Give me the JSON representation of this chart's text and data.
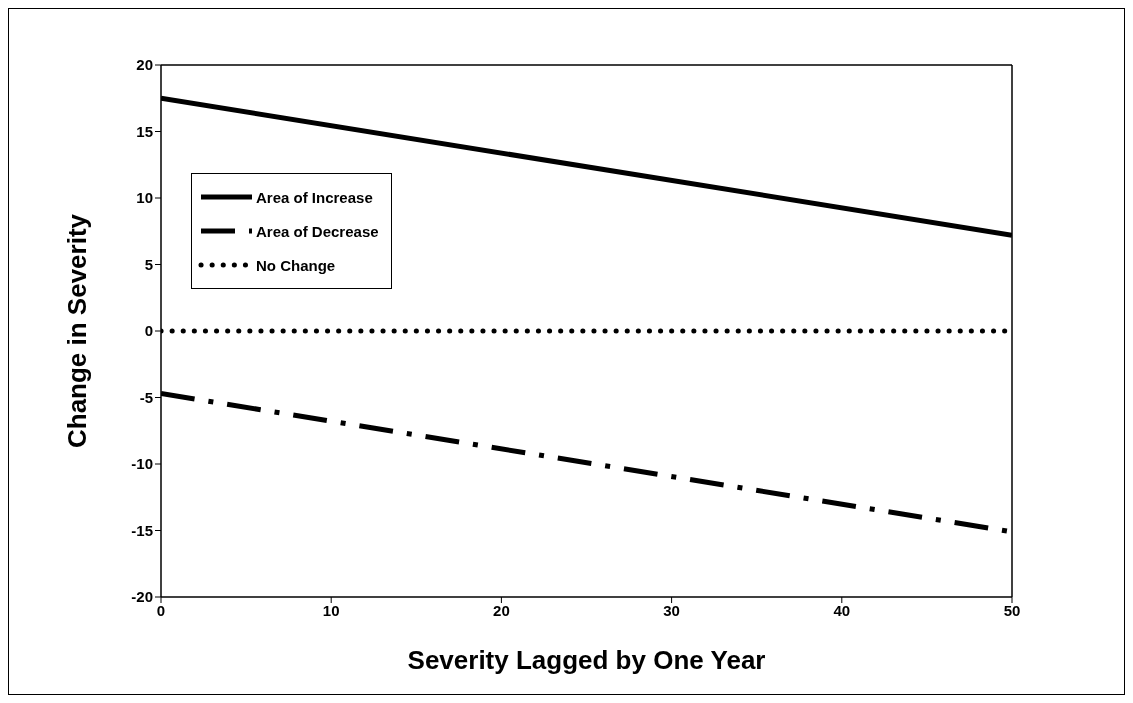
{
  "chart_data": {
    "type": "line",
    "xlabel": "Severity Lagged by One Year",
    "ylabel": "Change in Severity",
    "xlim": [
      0,
      50
    ],
    "xticks": [
      0,
      10,
      20,
      30,
      40,
      50
    ],
    "ylim": [
      -20,
      20
    ],
    "yticks": [
      -20,
      -15,
      -10,
      -5,
      0,
      5,
      10,
      15,
      20
    ],
    "grid": false,
    "legend": "top left",
    "marker": "none",
    "x": [
      0,
      50
    ],
    "series": [
      {
        "name": "Area of Increase",
        "color": "#000000",
        "line_style": "solid",
        "values": [
          17.5,
          7.2
        ]
      },
      {
        "name": "Area of Decrease",
        "color": "#000000",
        "line_style": "dashed",
        "values": [
          -4.7,
          -15.1
        ]
      },
      {
        "name": "No Change",
        "color": "#000000",
        "line_style": "dotted",
        "values": [
          0,
          0
        ]
      }
    ]
  }
}
